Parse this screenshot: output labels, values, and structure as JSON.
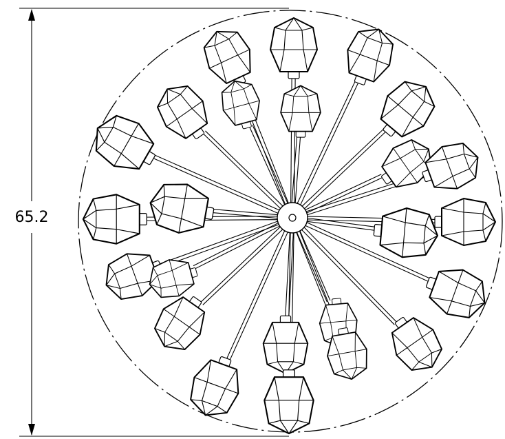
{
  "dimension": {
    "label": "65.2"
  },
  "colors": {
    "line": "#000000",
    "background": "#ffffff"
  }
}
